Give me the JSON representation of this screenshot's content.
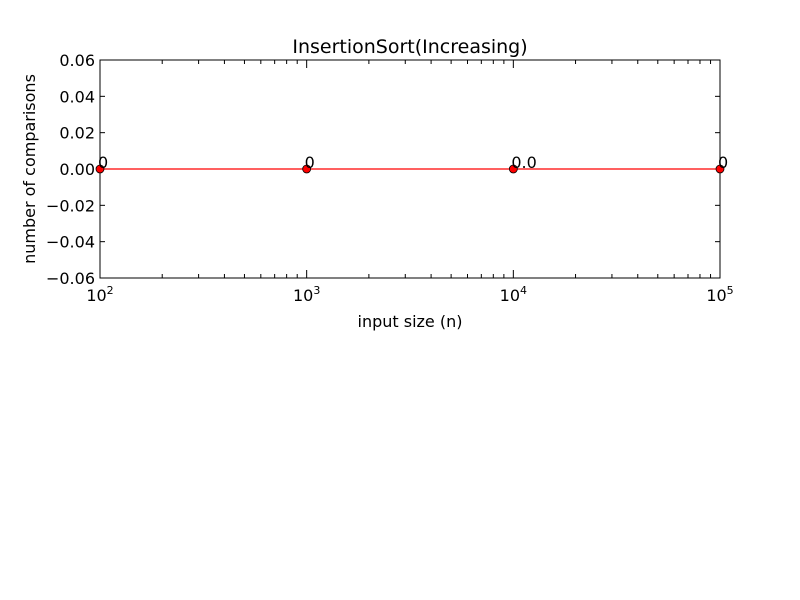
{
  "chart_data": {
    "type": "line",
    "title": "InsertionSort(Increasing)",
    "xlabel": "input size (n)",
    "ylabel": "number of comparisons",
    "xscale": "log",
    "xlim": [
      100,
      100000
    ],
    "ylim": [
      -0.06,
      0.06
    ],
    "x_ticks": [
      {
        "value": 100,
        "base": "10",
        "exp": "2"
      },
      {
        "value": 1000,
        "base": "10",
        "exp": "3"
      },
      {
        "value": 10000,
        "base": "10",
        "exp": "4"
      },
      {
        "value": 100000,
        "base": "10",
        "exp": "5"
      }
    ],
    "y_ticks": [
      {
        "value": 0.06,
        "label": "0.06"
      },
      {
        "value": 0.04,
        "label": "0.04"
      },
      {
        "value": 0.02,
        "label": "0.02"
      },
      {
        "value": 0.0,
        "label": "0.00"
      },
      {
        "value": -0.02,
        "label": "−0.02"
      },
      {
        "value": -0.04,
        "label": "−0.04"
      },
      {
        "value": -0.06,
        "label": "−0.06"
      }
    ],
    "grid": false,
    "series": [
      {
        "color": "#ff0000",
        "marker_color": "#ff0000",
        "points": [
          {
            "x": 100,
            "y": 0,
            "label": "0"
          },
          {
            "x": 1000,
            "y": 0,
            "label": "0"
          },
          {
            "x": 10000,
            "y": 0,
            "label": "0.0"
          },
          {
            "x": 100000,
            "y": 0,
            "label": "0"
          }
        ]
      }
    ]
  }
}
